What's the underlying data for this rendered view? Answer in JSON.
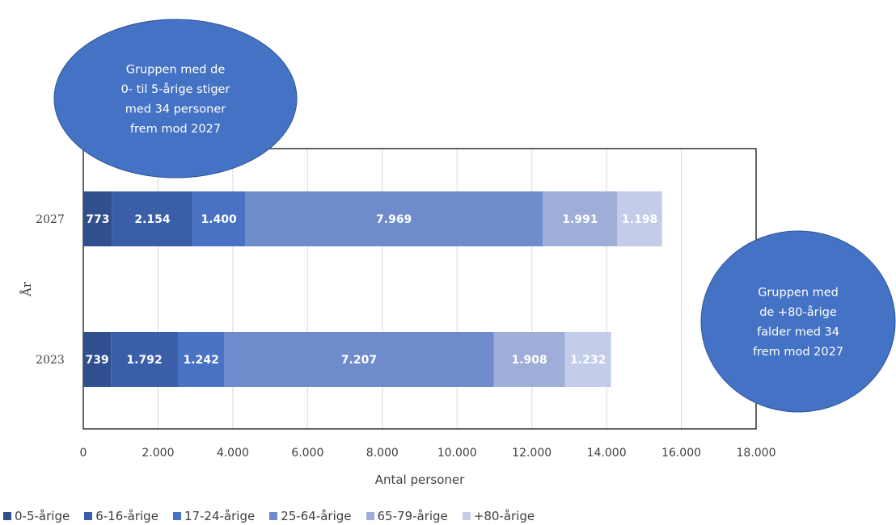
{
  "chart_data": {
    "type": "bar",
    "orientation": "horizontal",
    "stacked": true,
    "title": "",
    "xlabel": "Antal personer",
    "ylabel": "År",
    "xlim": [
      0,
      18000
    ],
    "x_ticks": [
      "0",
      "2.000",
      "4.000",
      "6.000",
      "8.000",
      "10.000",
      "12.000",
      "14.000",
      "16.000",
      "18.000"
    ],
    "categories": [
      "2027",
      "2023"
    ],
    "series": [
      {
        "name": "0-5-årige",
        "color": "#2f4f8f",
        "values": [
          773,
          739
        ],
        "labels": [
          "773",
          "739"
        ]
      },
      {
        "name": "6-16-årige",
        "color": "#3a5fa8",
        "values": [
          2154,
          1792
        ],
        "labels": [
          "2.154",
          "1.792"
        ]
      },
      {
        "name": "17-24-årige",
        "color": "#4a72c4",
        "values": [
          1400,
          1242
        ],
        "labels": [
          "1.400",
          "1.242"
        ]
      },
      {
        "name": "25-64-årige",
        "color": "#6e8bcc",
        "values": [
          7969,
          7207
        ],
        "labels": [
          "7.969",
          "7.207"
        ]
      },
      {
        "name": "65-79-årige",
        "color": "#9eaed9",
        "values": [
          1991,
          1908
        ],
        "labels": [
          "1.991",
          "1.908"
        ]
      },
      {
        "name": "+80-årige",
        "color": "#c3cce8",
        "values": [
          1198,
          1232
        ],
        "labels": [
          "1.198",
          "1.232"
        ]
      }
    ],
    "grid": true,
    "legend_position": "bottom",
    "annotations": [
      {
        "text": [
          "Gruppen med de",
          "0- til 5-årige stiger",
          "med 34 personer",
          "frem mod 2027"
        ],
        "color": "#4472c4"
      },
      {
        "text": [
          "Gruppen med",
          "de +80-årige",
          "falder med 34",
          "frem mod 2027"
        ],
        "color": "#4472c4"
      }
    ]
  }
}
